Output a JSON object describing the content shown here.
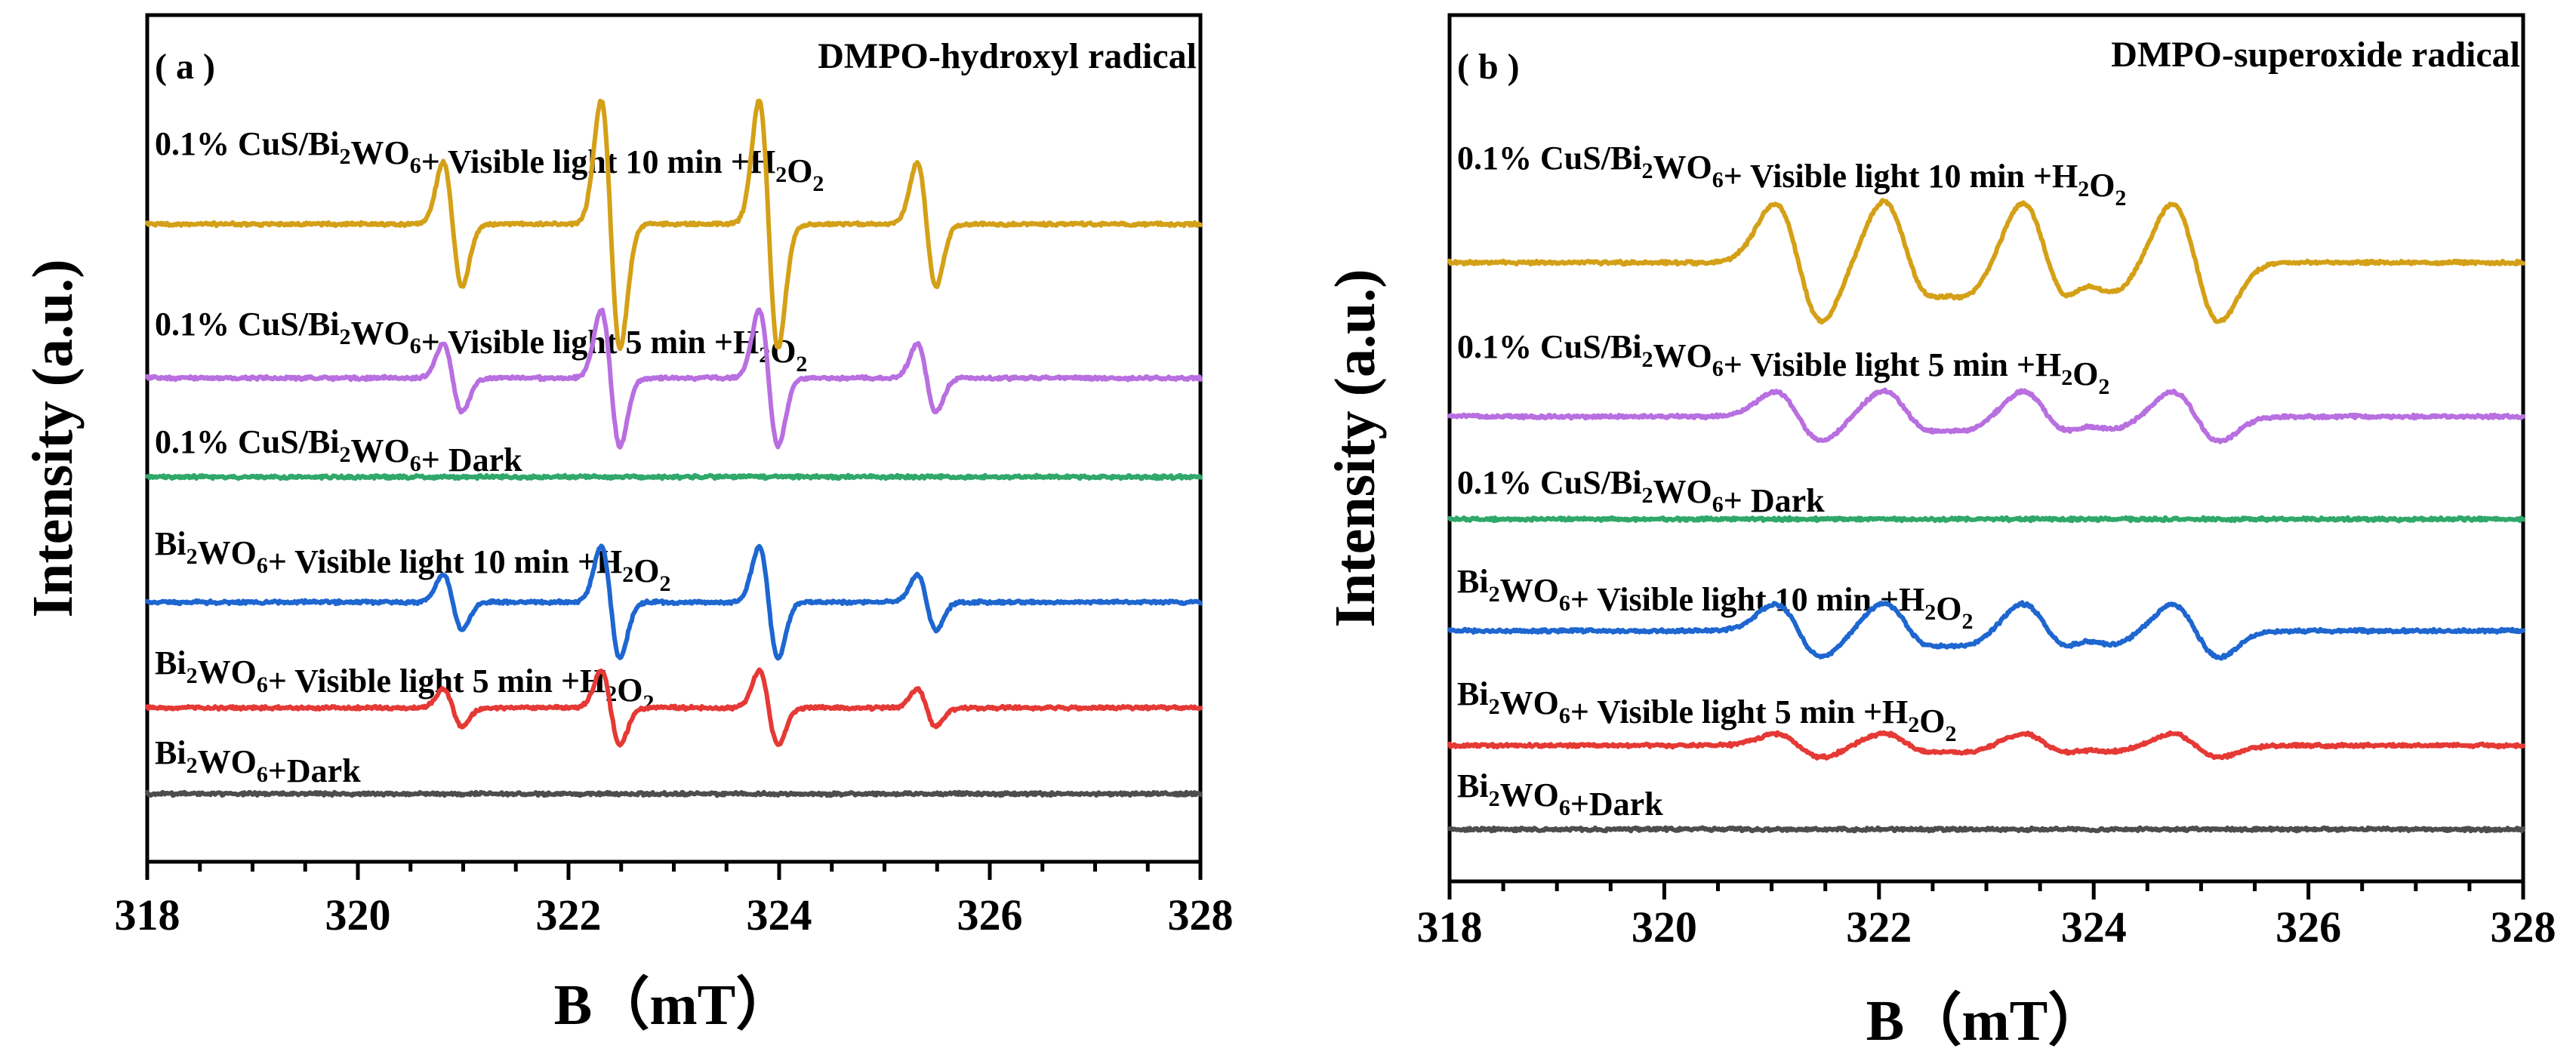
{
  "chart_data": [
    {
      "type": "line",
      "panel_label": "( a )",
      "title": "DMPO-hydroxyl radical",
      "xlabel": "B（mT）",
      "ylabel": "Intensity (a.u.)",
      "xlim": [
        318,
        328
      ],
      "xticks": [
        "318",
        "320",
        "322",
        "324",
        "326",
        "328"
      ],
      "peak_positions": [
        320.9,
        322.4,
        323.9,
        325.4
      ],
      "peak_weights": [
        1,
        2,
        2,
        1
      ],
      "series": [
        {
          "name": "0.1% CuS/Bi2WO6+ Visible light 10 min +H2O2",
          "label_parts": [
            [
              "0.1% CuS/Bi",
              ""
            ],
            [
              "2",
              "sub"
            ],
            [
              "WO",
              ""
            ],
            [
              "6",
              "sub"
            ],
            [
              "+ Visible light 10 min +H",
              ""
            ],
            [
              "2",
              "sub"
            ],
            [
              "O",
              ""
            ],
            [
              "2",
              "sub"
            ]
          ],
          "color": "#D4A017",
          "amplitude": 1.0
        },
        {
          "name": "0.1% CuS/Bi2WO6+ Visible light 5 min +H2O2",
          "label_parts": [
            [
              "0.1% CuS/Bi",
              ""
            ],
            [
              "2",
              "sub"
            ],
            [
              "WO",
              ""
            ],
            [
              "6",
              "sub"
            ],
            [
              "+ Visible light 5 min +H",
              ""
            ],
            [
              "2",
              "sub"
            ],
            [
              "O",
              ""
            ],
            [
              "2",
              "sub"
            ]
          ],
          "color": "#B86FE0",
          "amplitude": 0.55
        },
        {
          "name": "0.1% CuS/Bi2WO6+ Dark",
          "label_parts": [
            [
              "0.1% CuS/Bi",
              ""
            ],
            [
              "2",
              "sub"
            ],
            [
              "WO",
              ""
            ],
            [
              "6",
              "sub"
            ],
            [
              "+ Dark",
              ""
            ]
          ],
          "color": "#2FA86A",
          "amplitude": 0.0
        },
        {
          "name": "Bi2WO6+ Visible light 10 min +H2O2",
          "label_parts": [
            [
              "Bi",
              ""
            ],
            [
              "2",
              "sub"
            ],
            [
              "WO",
              ""
            ],
            [
              "6",
              "sub"
            ],
            [
              "+ Visible light 10 min +H",
              ""
            ],
            [
              "2",
              "sub"
            ],
            [
              "O",
              ""
            ],
            [
              "2",
              "sub"
            ]
          ],
          "color": "#1E66D0",
          "amplitude": 0.45
        },
        {
          "name": "Bi2WO6+ Visible light 5 min +H2O2",
          "label_parts": [
            [
              "Bi",
              ""
            ],
            [
              "2",
              "sub"
            ],
            [
              "WO",
              ""
            ],
            [
              "6",
              "sub"
            ],
            [
              "+ Visible light 5 min +H",
              ""
            ],
            [
              "2",
              "sub"
            ],
            [
              "O",
              ""
            ],
            [
              "2",
              "sub"
            ]
          ],
          "color": "#E53935",
          "amplitude": 0.3
        },
        {
          "name": "Bi2WO6+Dark",
          "label_parts": [
            [
              "Bi",
              ""
            ],
            [
              "2",
              "sub"
            ],
            [
              "WO",
              ""
            ],
            [
              "6",
              "sub"
            ],
            [
              "+Dark",
              ""
            ]
          ],
          "color": "#4D4D4D",
          "amplitude": 0.0
        }
      ]
    },
    {
      "type": "line",
      "panel_label": "( b )",
      "title": "DMPO-superoxide radical",
      "xlabel": "B（mT）",
      "ylabel": "Intensity (a.u.)",
      "xlim": [
        318,
        328
      ],
      "xticks": [
        "318",
        "320",
        "322",
        "324",
        "326",
        "328"
      ],
      "peak_positions": [
        321.25,
        322.25,
        322.65,
        323.55,
        324.0,
        324.95
      ],
      "peak_weights": [
        1,
        1,
        0.45,
        1,
        0.45,
        1
      ],
      "series": [
        {
          "name": "0.1% CuS/Bi2WO6+ Visible light 10 min +H2O2",
          "label_parts": [
            [
              "0.1% CuS/Bi",
              ""
            ],
            [
              "2",
              "sub"
            ],
            [
              "WO",
              ""
            ],
            [
              "6",
              "sub"
            ],
            [
              "+ Visible light 10 min +H",
              ""
            ],
            [
              "2",
              "sub"
            ],
            [
              "O",
              ""
            ],
            [
              "2",
              "sub"
            ]
          ],
          "color": "#D4A017",
          "amplitude": 1.0
        },
        {
          "name": "0.1% CuS/Bi2WO6+ Visible light 5 min +H2O2",
          "label_parts": [
            [
              "0.1% CuS/Bi",
              ""
            ],
            [
              "2",
              "sub"
            ],
            [
              "WO",
              ""
            ],
            [
              "6",
              "sub"
            ],
            [
              "+ Visible light 5 min +H",
              ""
            ],
            [
              "2",
              "sub"
            ],
            [
              "O",
              ""
            ],
            [
              "2",
              "sub"
            ]
          ],
          "color": "#B86FE0",
          "amplitude": 0.42
        },
        {
          "name": "0.1% CuS/Bi2WO6+ Dark",
          "label_parts": [
            [
              "0.1% CuS/Bi",
              ""
            ],
            [
              "2",
              "sub"
            ],
            [
              "WO",
              ""
            ],
            [
              "6",
              "sub"
            ],
            [
              "+ Dark",
              ""
            ]
          ],
          "color": "#2FA86A",
          "amplitude": 0.0
        },
        {
          "name": "Bi2WO6+ Visible light 10 min +H2O2",
          "label_parts": [
            [
              "Bi",
              ""
            ],
            [
              "2",
              "sub"
            ],
            [
              "WO",
              ""
            ],
            [
              "6",
              "sub"
            ],
            [
              "+ Visible light 10 min +H",
              ""
            ],
            [
              "2",
              "sub"
            ],
            [
              "O",
              ""
            ],
            [
              "2",
              "sub"
            ]
          ],
          "color": "#1E66D0",
          "amplitude": 0.45
        },
        {
          "name": "Bi2WO6+ Visible light 5 min +H2O2",
          "label_parts": [
            [
              "Bi",
              ""
            ],
            [
              "2",
              "sub"
            ],
            [
              "WO",
              ""
            ],
            [
              "6",
              "sub"
            ],
            [
              "+ Visible light 5 min +H",
              ""
            ],
            [
              "2",
              "sub"
            ],
            [
              "O",
              ""
            ],
            [
              "2",
              "sub"
            ]
          ],
          "color": "#E53935",
          "amplitude": 0.2
        },
        {
          "name": "Bi2WO6+Dark",
          "label_parts": [
            [
              "Bi",
              ""
            ],
            [
              "2",
              "sub"
            ],
            [
              "WO",
              ""
            ],
            [
              "6",
              "sub"
            ],
            [
              "+Dark",
              ""
            ]
          ],
          "color": "#4D4D4D",
          "amplitude": 0.0
        }
      ]
    }
  ]
}
